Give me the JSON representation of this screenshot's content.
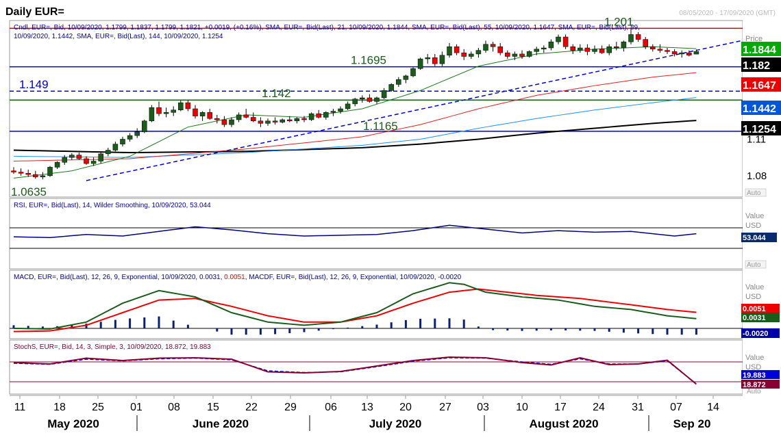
{
  "header": {
    "title": "Daily EUR=",
    "date_range": "08/05/2020 - 17/09/2020 (GMT)"
  },
  "price_panel": {
    "legend_line1": "Cndl, EUR=, Bid, 10/09/2020, 1.1799, 1.1837, 1.1799, 1.1821, +0.0019, (+0.16%), SMA, EUR=, Bid(Last), 21, 10/09/2020, 1.1844, SMA, EUR=, Bid(Last), 55, 10/09/2020, 1.1647, SMA, EUR=, Bid(Last), 89,",
    "legend_line2": "10/09/2020, 1.1442, SMA, EUR=, Bid(Last), 144, 10/09/2020, 1.1254",
    "axis_title": "Price",
    "axis_sub": "USD",
    "auto_label": "Auto",
    "badges": [
      {
        "label": "1.1844",
        "color": "#00aa00",
        "value": 1.1844
      },
      {
        "label": "1.182",
        "color": "#000000",
        "value": 1.1821
      },
      {
        "label": "1.1647",
        "color": "#ee0000",
        "value": 1.1647
      },
      {
        "label": "1.1442",
        "color": "#0055dd",
        "value": 1.1442
      },
      {
        "label": "1.1254",
        "color": "#000000",
        "value": 1.1254
      }
    ],
    "levels": [
      {
        "label": "1.201",
        "value": 1.2011,
        "color": "#cc0000",
        "style": "solid"
      },
      {
        "label": "1.1695",
        "value": 1.1695,
        "color": "#0000cc",
        "style": "solid"
      },
      {
        "label": "1.149",
        "value": 1.1495,
        "color": "#0000cc",
        "style": "dashed"
      },
      {
        "label": "1.142",
        "value": 1.1422,
        "color": "#1a5c1a",
        "style": "solid"
      },
      {
        "label": "1.1165",
        "value": 1.1165,
        "color": "#0000cc",
        "style": "solid"
      },
      {
        "label": "1.0635",
        "value": 1.0635,
        "color": "#1a5c1a",
        "style": "none"
      }
    ]
  },
  "rsi_panel": {
    "legend": "RSI, EUR=, Bid(Last), 14, Wilder Smoothing, 10/09/2020, 53.044",
    "axis_title": "Value",
    "axis_sub": "USD",
    "badge": "53.044",
    "auto_label": "Auto"
  },
  "macd_panel": {
    "legend_a": "MACD, EUR=, Bid(Last), 12, 26, 9, Exponential, 10/09/2020, 0.0031, ",
    "legend_b": "0.0051",
    "legend_c": ", MACDF, EUR=, Bid(Last), 12, 26, 9, Exponential, 10/09/2020, -0.0020",
    "axis_title": "Value",
    "axis_sub": "USD",
    "badges": [
      {
        "label": "0.0051",
        "color": "#ee0000"
      },
      {
        "label": "0.0031",
        "color": "#1a5c1a"
      },
      {
        "label": "-0.0020",
        "color": "#0000aa"
      }
    ],
    "auto_label": "Auto"
  },
  "stoch_panel": {
    "legend": "StochS, EUR=, Bid, 14, 3, Simple, 3, 10/09/2020, 18.872, 19.883",
    "axis_title": "Value",
    "axis_sub": "USD",
    "badges": [
      {
        "label": "19.883",
        "color": "#0000dd"
      },
      {
        "label": "18.872",
        "color": "#880033"
      }
    ],
    "auto_label": "Auto"
  },
  "chart_data": {
    "type": "line",
    "price_axis": {
      "ticks": [
        1.11,
        1.08
      ],
      "ylim": [
        1.0625,
        1.2075
      ]
    },
    "x_axis": {
      "day_labels": [
        "11",
        "18",
        "25",
        "01",
        "08",
        "15",
        "22",
        "29",
        "06",
        "13",
        "20",
        "27",
        "03",
        "10",
        "17",
        "24",
        "31",
        "07",
        "14"
      ],
      "month_labels": [
        "May 2020",
        "June 2020",
        "July 2020",
        "August 2020",
        "Sep 20"
      ]
    },
    "candles": [
      [
        1.084,
        1.087,
        1.0815,
        1.083
      ],
      [
        1.083,
        1.086,
        1.08,
        1.082
      ],
      [
        1.082,
        1.085,
        1.079,
        1.081
      ],
      [
        1.081,
        1.084,
        1.0775,
        1.079
      ],
      [
        1.079,
        1.083,
        1.077,
        1.08
      ],
      [
        1.08,
        1.088,
        1.079,
        1.087
      ],
      [
        1.087,
        1.092,
        1.0855,
        1.091
      ],
      [
        1.091,
        1.097,
        1.089,
        1.095
      ],
      [
        1.095,
        1.0985,
        1.093,
        1.097
      ],
      [
        1.097,
        1.099,
        1.093,
        1.094
      ],
      [
        1.094,
        1.096,
        1.089,
        1.09
      ],
      [
        1.09,
        1.095,
        1.088,
        1.092
      ],
      [
        1.092,
        1.099,
        1.09,
        1.098
      ],
      [
        1.098,
        1.103,
        1.096,
        1.101
      ],
      [
        1.101,
        1.108,
        1.1,
        1.106
      ],
      [
        1.106,
        1.112,
        1.104,
        1.11
      ],
      [
        1.11,
        1.115,
        1.108,
        1.113
      ],
      [
        1.113,
        1.119,
        1.111,
        1.116
      ],
      [
        1.116,
        1.126,
        1.115,
        1.125
      ],
      [
        1.125,
        1.138,
        1.124,
        1.136
      ],
      [
        1.136,
        1.141,
        1.129,
        1.131
      ],
      [
        1.131,
        1.136,
        1.128,
        1.132
      ],
      [
        1.132,
        1.137,
        1.129,
        1.134
      ],
      [
        1.134,
        1.142,
        1.133,
        1.14
      ],
      [
        1.14,
        1.142,
        1.133,
        1.135
      ],
      [
        1.135,
        1.138,
        1.127,
        1.129
      ],
      [
        1.129,
        1.133,
        1.125,
        1.132
      ],
      [
        1.132,
        1.135,
        1.126,
        1.127
      ],
      [
        1.127,
        1.13,
        1.123,
        1.126
      ],
      [
        1.126,
        1.129,
        1.12,
        1.122
      ],
      [
        1.122,
        1.128,
        1.12,
        1.126
      ],
      [
        1.126,
        1.132,
        1.124,
        1.13
      ],
      [
        1.13,
        1.135,
        1.127,
        1.128
      ],
      [
        1.128,
        1.132,
        1.124,
        1.125
      ],
      [
        1.125,
        1.128,
        1.12,
        1.123
      ],
      [
        1.123,
        1.127,
        1.121,
        1.125
      ],
      [
        1.125,
        1.128,
        1.122,
        1.124
      ],
      [
        1.124,
        1.127,
        1.123,
        1.126
      ],
      [
        1.126,
        1.129,
        1.124,
        1.125
      ],
      [
        1.125,
        1.128,
        1.123,
        1.127
      ],
      [
        1.127,
        1.129,
        1.124,
        1.126
      ],
      [
        1.126,
        1.132,
        1.125,
        1.131
      ],
      [
        1.131,
        1.134,
        1.127,
        1.128
      ],
      [
        1.128,
        1.133,
        1.126,
        1.132
      ],
      [
        1.132,
        1.135,
        1.129,
        1.133
      ],
      [
        1.133,
        1.137,
        1.131,
        1.135
      ],
      [
        1.135,
        1.141,
        1.134,
        1.139
      ],
      [
        1.139,
        1.144,
        1.137,
        1.143
      ],
      [
        1.143,
        1.146,
        1.14,
        1.144
      ],
      [
        1.144,
        1.147,
        1.14,
        1.141
      ],
      [
        1.141,
        1.145,
        1.139,
        1.144
      ],
      [
        1.144,
        1.152,
        1.143,
        1.15
      ],
      [
        1.15,
        1.156,
        1.149,
        1.155
      ],
      [
        1.155,
        1.161,
        1.153,
        1.159
      ],
      [
        1.159,
        1.163,
        1.156,
        1.162
      ],
      [
        1.162,
        1.169,
        1.161,
        1.168
      ],
      [
        1.168,
        1.177,
        1.167,
        1.176
      ],
      [
        1.176,
        1.18,
        1.172,
        1.177
      ],
      [
        1.177,
        1.18,
        1.17,
        1.172
      ],
      [
        1.172,
        1.182,
        1.17,
        1.179
      ],
      [
        1.179,
        1.189,
        1.177,
        1.186
      ],
      [
        1.186,
        1.188,
        1.179,
        1.181
      ],
      [
        1.181,
        1.184,
        1.175,
        1.178
      ],
      [
        1.178,
        1.182,
        1.176,
        1.18
      ],
      [
        1.18,
        1.185,
        1.177,
        1.183
      ],
      [
        1.183,
        1.191,
        1.181,
        1.188
      ],
      [
        1.188,
        1.19,
        1.182,
        1.186
      ],
      [
        1.186,
        1.189,
        1.179,
        1.181
      ],
      [
        1.181,
        1.183,
        1.176,
        1.178
      ],
      [
        1.178,
        1.182,
        1.175,
        1.18
      ],
      [
        1.18,
        1.183,
        1.176,
        1.178
      ],
      [
        1.178,
        1.183,
        1.177,
        1.182
      ],
      [
        1.182,
        1.186,
        1.179,
        1.184
      ],
      [
        1.184,
        1.187,
        1.181,
        1.185
      ],
      [
        1.185,
        1.192,
        1.183,
        1.19
      ],
      [
        1.19,
        1.196,
        1.188,
        1.194
      ],
      [
        1.194,
        1.196,
        1.184,
        1.186
      ],
      [
        1.186,
        1.188,
        1.18,
        1.183
      ],
      [
        1.183,
        1.188,
        1.181,
        1.185
      ],
      [
        1.185,
        1.188,
        1.179,
        1.182
      ],
      [
        1.182,
        1.187,
        1.18,
        1.184
      ],
      [
        1.184,
        1.187,
        1.18,
        1.181
      ],
      [
        1.181,
        1.188,
        1.179,
        1.186
      ],
      [
        1.186,
        1.19,
        1.183,
        1.185
      ],
      [
        1.185,
        1.191,
        1.182,
        1.19
      ],
      [
        1.19,
        1.2011,
        1.188,
        1.196
      ],
      [
        1.196,
        1.198,
        1.19,
        1.192
      ],
      [
        1.192,
        1.194,
        1.184,
        1.186
      ],
      [
        1.186,
        1.188,
        1.182,
        1.184
      ],
      [
        1.184,
        1.188,
        1.181,
        1.183
      ],
      [
        1.183,
        1.185,
        1.18,
        1.182
      ],
      [
        1.182,
        1.184,
        1.178,
        1.18
      ],
      [
        1.18,
        1.183,
        1.177,
        1.181
      ],
      [
        1.181,
        1.183,
        1.178,
        1.179
      ],
      [
        1.1799,
        1.1837,
        1.1799,
        1.1821
      ]
    ],
    "sma21": [
      [
        0,
        1.078
      ],
      [
        8,
        1.084
      ],
      [
        16,
        1.096
      ],
      [
        24,
        1.12
      ],
      [
        32,
        1.13
      ],
      [
        40,
        1.128
      ],
      [
        48,
        1.135
      ],
      [
        56,
        1.15
      ],
      [
        64,
        1.17
      ],
      [
        72,
        1.18
      ],
      [
        80,
        1.184
      ],
      [
        88,
        1.186
      ],
      [
        94,
        1.1844
      ]
    ],
    "sma55": [
      [
        0,
        1.092
      ],
      [
        16,
        1.094
      ],
      [
        32,
        1.102
      ],
      [
        48,
        1.112
      ],
      [
        56,
        1.122
      ],
      [
        64,
        1.135
      ],
      [
        72,
        1.146
      ],
      [
        80,
        1.154
      ],
      [
        88,
        1.161
      ],
      [
        94,
        1.1647
      ]
    ],
    "sma89": [
      [
        0,
        1.096
      ],
      [
        16,
        1.095
      ],
      [
        32,
        1.099
      ],
      [
        48,
        1.105
      ],
      [
        56,
        1.11
      ],
      [
        64,
        1.119
      ],
      [
        72,
        1.127
      ],
      [
        80,
        1.134
      ],
      [
        88,
        1.14
      ],
      [
        94,
        1.1442
      ]
    ],
    "sma144": [
      [
        0,
        1.101
      ],
      [
        16,
        1.099
      ],
      [
        32,
        1.1
      ],
      [
        48,
        1.103
      ],
      [
        56,
        1.106
      ],
      [
        64,
        1.11
      ],
      [
        72,
        1.115
      ],
      [
        80,
        1.119
      ],
      [
        88,
        1.123
      ],
      [
        94,
        1.1254
      ]
    ],
    "trendline": [
      [
        10,
        1.076
      ],
      [
        94,
        1.183
      ]
    ],
    "rsi": [
      [
        0,
        49
      ],
      [
        5,
        48
      ],
      [
        10,
        52
      ],
      [
        15,
        50
      ],
      [
        20,
        56
      ],
      [
        25,
        62
      ],
      [
        30,
        58
      ],
      [
        35,
        53
      ],
      [
        40,
        50
      ],
      [
        45,
        51
      ],
      [
        50,
        52
      ],
      [
        55,
        57
      ],
      [
        60,
        64
      ],
      [
        65,
        59
      ],
      [
        70,
        54
      ],
      [
        75,
        57
      ],
      [
        80,
        55
      ],
      [
        85,
        56
      ],
      [
        88,
        53
      ],
      [
        91,
        50
      ],
      [
        94,
        53
      ]
    ],
    "macd": [
      [
        0,
        0
      ],
      [
        5,
        -0.0002
      ],
      [
        10,
        0.002
      ],
      [
        15,
        0.008
      ],
      [
        20,
        0.012
      ],
      [
        25,
        0.01
      ],
      [
        30,
        0.005
      ],
      [
        35,
        0.002
      ],
      [
        40,
        0.001
      ],
      [
        45,
        0.002
      ],
      [
        50,
        0.005
      ],
      [
        55,
        0.011
      ],
      [
        60,
        0.0145
      ],
      [
        62,
        0.014
      ],
      [
        65,
        0.0115
      ],
      [
        70,
        0.01
      ],
      [
        75,
        0.009
      ],
      [
        80,
        0.007
      ],
      [
        85,
        0.006
      ],
      [
        90,
        0.004
      ],
      [
        94,
        0.0031
      ]
    ],
    "macd_signal": [
      [
        0,
        -0.001
      ],
      [
        5,
        -0.0008
      ],
      [
        10,
        0.001
      ],
      [
        15,
        0.005
      ],
      [
        20,
        0.009
      ],
      [
        25,
        0.0095
      ],
      [
        30,
        0.007
      ],
      [
        35,
        0.004
      ],
      [
        40,
        0.002
      ],
      [
        45,
        0.002
      ],
      [
        50,
        0.004
      ],
      [
        55,
        0.008
      ],
      [
        60,
        0.0115
      ],
      [
        64,
        0.0125
      ],
      [
        68,
        0.0115
      ],
      [
        72,
        0.0105
      ],
      [
        78,
        0.0095
      ],
      [
        85,
        0.0075
      ],
      [
        90,
        0.006
      ],
      [
        94,
        0.0051
      ]
    ],
    "macd_hist": [
      [
        0,
        0.001
      ],
      [
        5,
        0.0005
      ],
      [
        10,
        0.0015
      ],
      [
        15,
        0.003
      ],
      [
        20,
        0.0038
      ],
      [
        25,
        0.0005
      ],
      [
        30,
        -0.002
      ],
      [
        35,
        -0.002
      ],
      [
        40,
        -0.0012
      ],
      [
        45,
        0.0
      ],
      [
        50,
        0.0012
      ],
      [
        55,
        0.003
      ],
      [
        60,
        0.0032
      ],
      [
        62,
        0.0028
      ],
      [
        65,
        -0.0005
      ],
      [
        70,
        -0.0008
      ],
      [
        75,
        -0.0006
      ],
      [
        80,
        -0.0008
      ],
      [
        85,
        -0.0015
      ],
      [
        90,
        -0.002
      ],
      [
        94,
        -0.002
      ]
    ],
    "stoch_k": [
      [
        0,
        82
      ],
      [
        5,
        78
      ],
      [
        10,
        95
      ],
      [
        15,
        88
      ],
      [
        20,
        95
      ],
      [
        25,
        96
      ],
      [
        30,
        92
      ],
      [
        35,
        55
      ],
      [
        40,
        52
      ],
      [
        45,
        56
      ],
      [
        50,
        72
      ],
      [
        55,
        88
      ],
      [
        60,
        98
      ],
      [
        65,
        96
      ],
      [
        70,
        82
      ],
      [
        74,
        75
      ],
      [
        78,
        96
      ],
      [
        82,
        76
      ],
      [
        86,
        78
      ],
      [
        90,
        89
      ],
      [
        94,
        19
      ]
    ],
    "stoch_d": [
      [
        0,
        80
      ],
      [
        5,
        77
      ],
      [
        10,
        92
      ],
      [
        15,
        87
      ],
      [
        20,
        93
      ],
      [
        25,
        95
      ],
      [
        30,
        90
      ],
      [
        35,
        58
      ],
      [
        40,
        53
      ],
      [
        45,
        55
      ],
      [
        50,
        70
      ],
      [
        55,
        86
      ],
      [
        60,
        96
      ],
      [
        65,
        95
      ],
      [
        70,
        84
      ],
      [
        74,
        77
      ],
      [
        78,
        93
      ],
      [
        82,
        78
      ],
      [
        86,
        78
      ],
      [
        90,
        87
      ],
      [
        94,
        20
      ]
    ]
  }
}
